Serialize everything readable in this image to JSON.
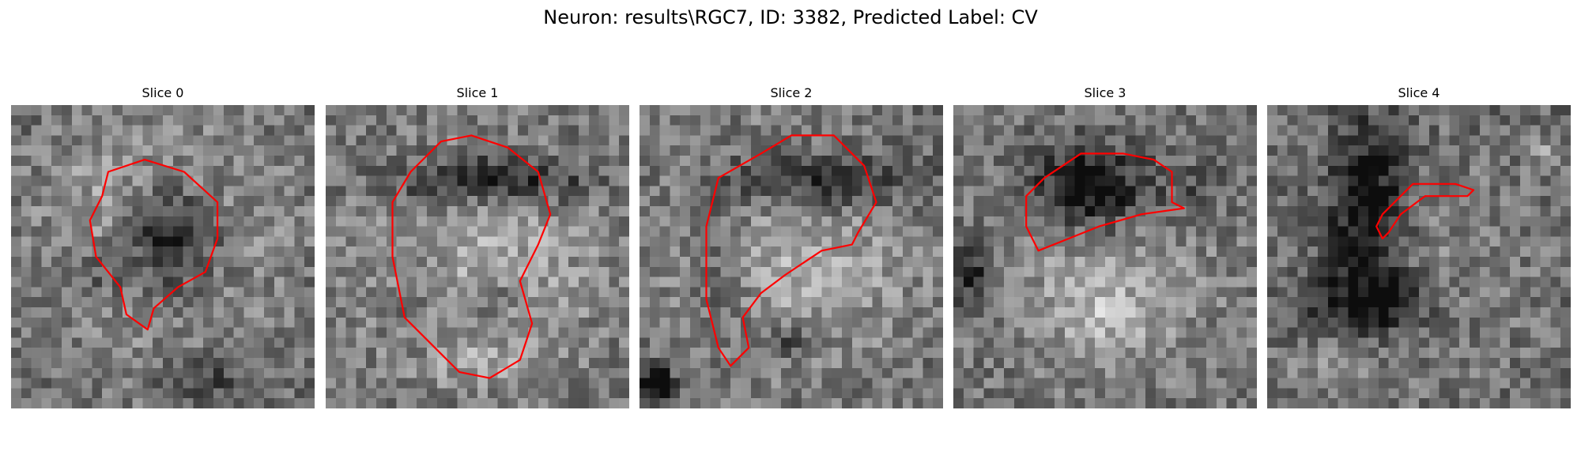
{
  "figure": {
    "title": "Neuron: results\\RGC7, ID: 3382, Predicted Label: CV"
  },
  "colors": {
    "outline": "#ff0000",
    "background": "#ffffff"
  },
  "panels": [
    {
      "title": "Slice 0",
      "seed": 11,
      "blobs": [
        [
          0.52,
          0.42,
          0.18,
          0.2,
          0.55
        ],
        [
          0.48,
          0.3,
          0.32,
          0.24,
          -0.22
        ],
        [
          0.5,
          0.55,
          0.4,
          0.4,
          -0.18
        ],
        [
          0.3,
          0.55,
          0.1,
          0.08,
          0.18
        ],
        [
          0.65,
          0.9,
          0.18,
          0.1,
          0.2
        ]
      ],
      "outline": [
        [
          0.32,
          0.22
        ],
        [
          0.44,
          0.18
        ],
        [
          0.57,
          0.22
        ],
        [
          0.68,
          0.32
        ],
        [
          0.68,
          0.44
        ],
        [
          0.64,
          0.55
        ],
        [
          0.55,
          0.6
        ],
        [
          0.47,
          0.67
        ],
        [
          0.45,
          0.74
        ],
        [
          0.38,
          0.69
        ],
        [
          0.36,
          0.6
        ],
        [
          0.28,
          0.5
        ],
        [
          0.26,
          0.38
        ],
        [
          0.3,
          0.3
        ]
      ]
    },
    {
      "title": "Slice 1",
      "seed": 23,
      "blobs": [
        [
          0.55,
          0.25,
          0.3,
          0.08,
          0.45
        ],
        [
          0.5,
          0.5,
          0.45,
          0.4,
          -0.25
        ],
        [
          0.3,
          0.55,
          0.1,
          0.25,
          0.15
        ],
        [
          0.55,
          0.65,
          0.08,
          0.08,
          0.2
        ],
        [
          0.5,
          0.85,
          0.25,
          0.08,
          -0.1
        ]
      ],
      "outline": [
        [
          0.28,
          0.22
        ],
        [
          0.38,
          0.12
        ],
        [
          0.48,
          0.1
        ],
        [
          0.6,
          0.14
        ],
        [
          0.7,
          0.22
        ],
        [
          0.74,
          0.36
        ],
        [
          0.7,
          0.46
        ],
        [
          0.64,
          0.58
        ],
        [
          0.68,
          0.72
        ],
        [
          0.64,
          0.84
        ],
        [
          0.54,
          0.9
        ],
        [
          0.44,
          0.88
        ],
        [
          0.36,
          0.8
        ],
        [
          0.26,
          0.7
        ],
        [
          0.22,
          0.5
        ],
        [
          0.22,
          0.32
        ]
      ]
    },
    {
      "title": "Slice 2",
      "seed": 37,
      "blobs": [
        [
          0.6,
          0.25,
          0.3,
          0.1,
          0.4
        ],
        [
          0.5,
          0.5,
          0.45,
          0.4,
          -0.25
        ],
        [
          0.28,
          0.55,
          0.1,
          0.25,
          0.2
        ],
        [
          0.05,
          0.92,
          0.06,
          0.06,
          0.6
        ],
        [
          0.5,
          0.78,
          0.1,
          0.06,
          0.25
        ]
      ],
      "outline": [
        [
          0.26,
          0.24
        ],
        [
          0.4,
          0.16
        ],
        [
          0.5,
          0.1
        ],
        [
          0.64,
          0.1
        ],
        [
          0.74,
          0.2
        ],
        [
          0.78,
          0.32
        ],
        [
          0.72,
          0.42
        ],
        [
          0.7,
          0.46
        ],
        [
          0.6,
          0.48
        ],
        [
          0.48,
          0.56
        ],
        [
          0.4,
          0.62
        ],
        [
          0.34,
          0.7
        ],
        [
          0.36,
          0.8
        ],
        [
          0.3,
          0.86
        ],
        [
          0.26,
          0.8
        ],
        [
          0.22,
          0.64
        ],
        [
          0.22,
          0.4
        ]
      ]
    },
    {
      "title": "Slice 3",
      "seed": 53,
      "blobs": [
        [
          0.45,
          0.28,
          0.2,
          0.14,
          0.5
        ],
        [
          0.5,
          0.55,
          0.42,
          0.38,
          -0.2
        ],
        [
          0.05,
          0.55,
          0.08,
          0.1,
          0.35
        ],
        [
          0.8,
          0.3,
          0.1,
          0.12,
          0.15
        ],
        [
          0.5,
          0.7,
          0.15,
          0.1,
          -0.15
        ]
      ],
      "outline": [
        [
          0.3,
          0.24
        ],
        [
          0.42,
          0.16
        ],
        [
          0.56,
          0.16
        ],
        [
          0.66,
          0.18
        ],
        [
          0.72,
          0.22
        ],
        [
          0.72,
          0.32
        ],
        [
          0.76,
          0.34
        ],
        [
          0.62,
          0.36
        ],
        [
          0.48,
          0.4
        ],
        [
          0.38,
          0.44
        ],
        [
          0.28,
          0.48
        ],
        [
          0.24,
          0.4
        ],
        [
          0.24,
          0.3
        ]
      ]
    },
    {
      "title": "Slice 4",
      "seed": 71,
      "blobs": [
        [
          0.33,
          0.35,
          0.12,
          0.28,
          0.45
        ],
        [
          0.35,
          0.65,
          0.22,
          0.1,
          0.35
        ],
        [
          0.6,
          0.55,
          0.32,
          0.32,
          -0.1
        ],
        [
          0.9,
          0.15,
          0.05,
          0.05,
          -0.2
        ],
        [
          0.2,
          0.85,
          0.2,
          0.1,
          -0.1
        ]
      ],
      "outline": [
        [
          0.38,
          0.36
        ],
        [
          0.48,
          0.26
        ],
        [
          0.62,
          0.26
        ],
        [
          0.68,
          0.28
        ],
        [
          0.66,
          0.3
        ],
        [
          0.52,
          0.3
        ],
        [
          0.44,
          0.36
        ],
        [
          0.4,
          0.42
        ],
        [
          0.38,
          0.44
        ],
        [
          0.36,
          0.4
        ]
      ]
    }
  ]
}
